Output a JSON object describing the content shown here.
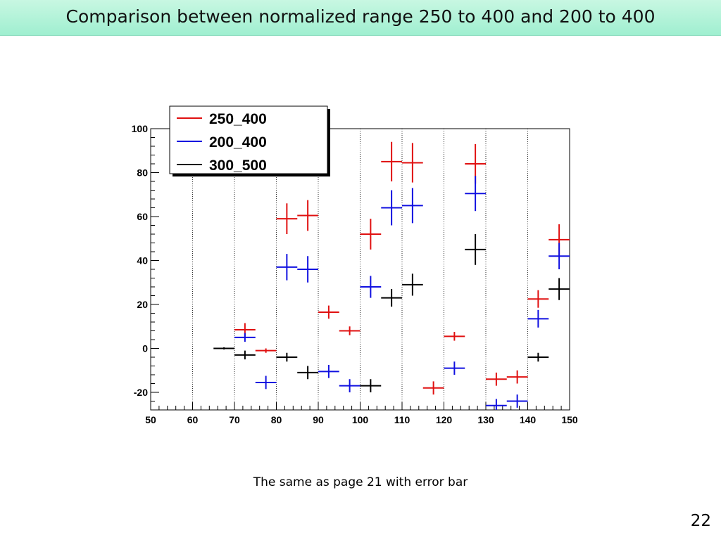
{
  "slide": {
    "title": "Comparison between normalized range 250 to 400 and 200 to 400",
    "caption": "The same as page 21 with error bar",
    "page_number": "22"
  },
  "chart_data": {
    "type": "scatter",
    "title": "",
    "xlabel": "",
    "ylabel": "",
    "xlim": [
      50,
      150
    ],
    "ylim": [
      -28,
      100
    ],
    "x_ticks": [
      50,
      60,
      70,
      80,
      90,
      100,
      110,
      120,
      130,
      140,
      150
    ],
    "y_ticks": [
      -20,
      0,
      20,
      40,
      60,
      80,
      100
    ],
    "grid": "vertical dotted lines every 10",
    "legend_position": "top-left",
    "series": [
      {
        "name": "250_400",
        "color": "#e01010",
        "points": [
          {
            "x": 72.5,
            "y": 8.5,
            "xerr": 2.5,
            "yerr": 3
          },
          {
            "x": 77.5,
            "y": -1,
            "xerr": 2.5,
            "yerr": 1
          },
          {
            "x": 82.5,
            "y": 59,
            "xerr": 2.5,
            "yerr": 7
          },
          {
            "x": 87.5,
            "y": 60.5,
            "xerr": 2.5,
            "yerr": 7
          },
          {
            "x": 92.5,
            "y": 16.5,
            "xerr": 2.5,
            "yerr": 3
          },
          {
            "x": 97.5,
            "y": 8,
            "xerr": 2.5,
            "yerr": 2
          },
          {
            "x": 102.5,
            "y": 52,
            "xerr": 2.5,
            "yerr": 7
          },
          {
            "x": 107.5,
            "y": 85,
            "xerr": 2.5,
            "yerr": 9
          },
          {
            "x": 112.5,
            "y": 84.5,
            "xerr": 2.5,
            "yerr": 9
          },
          {
            "x": 117.5,
            "y": -18,
            "xerr": 2.5,
            "yerr": 3
          },
          {
            "x": 122.5,
            "y": 5.5,
            "xerr": 2.5,
            "yerr": 2
          },
          {
            "x": 127.5,
            "y": 84,
            "xerr": 2.5,
            "yerr": 9
          },
          {
            "x": 132.5,
            "y": -14,
            "xerr": 2.5,
            "yerr": 3
          },
          {
            "x": 137.5,
            "y": -13,
            "xerr": 2.5,
            "yerr": 3
          },
          {
            "x": 142.5,
            "y": 22.5,
            "xerr": 2.5,
            "yerr": 4
          },
          {
            "x": 147.5,
            "y": 49.5,
            "xerr": 2.5,
            "yerr": 7
          }
        ]
      },
      {
        "name": "200_400",
        "color": "#1010e0",
        "points": [
          {
            "x": 72.5,
            "y": 5,
            "xerr": 2.5,
            "yerr": 2
          },
          {
            "x": 77.5,
            "y": -15.5,
            "xerr": 2.5,
            "yerr": 3
          },
          {
            "x": 82.5,
            "y": 37,
            "xerr": 2.5,
            "yerr": 6
          },
          {
            "x": 87.5,
            "y": 36,
            "xerr": 2.5,
            "yerr": 6
          },
          {
            "x": 92.5,
            "y": -10.5,
            "xerr": 2.5,
            "yerr": 3
          },
          {
            "x": 97.5,
            "y": -17,
            "xerr": 2.5,
            "yerr": 3
          },
          {
            "x": 102.5,
            "y": 28,
            "xerr": 2.5,
            "yerr": 5
          },
          {
            "x": 107.5,
            "y": 64,
            "xerr": 2.5,
            "yerr": 8
          },
          {
            "x": 112.5,
            "y": 65,
            "xerr": 2.5,
            "yerr": 8
          },
          {
            "x": 122.5,
            "y": -9,
            "xerr": 2.5,
            "yerr": 3
          },
          {
            "x": 127.5,
            "y": 70.5,
            "xerr": 2.5,
            "yerr": 8
          },
          {
            "x": 132.5,
            "y": -26,
            "xerr": 2.5,
            "yerr": 3
          },
          {
            "x": 137.5,
            "y": -24,
            "xerr": 2.5,
            "yerr": 3
          },
          {
            "x": 142.5,
            "y": 13.5,
            "xerr": 2.5,
            "yerr": 4
          },
          {
            "x": 147.5,
            "y": 42,
            "xerr": 2.5,
            "yerr": 6
          }
        ]
      },
      {
        "name": "300_500",
        "color": "#000000",
        "points": [
          {
            "x": 67.5,
            "y": 0,
            "xerr": 2.5,
            "yerr": 0.5
          },
          {
            "x": 72.5,
            "y": -3,
            "xerr": 2.5,
            "yerr": 2
          },
          {
            "x": 82.5,
            "y": -4,
            "xerr": 2.5,
            "yerr": 2
          },
          {
            "x": 87.5,
            "y": -11,
            "xerr": 2.5,
            "yerr": 3
          },
          {
            "x": 102.5,
            "y": -17,
            "xerr": 2.5,
            "yerr": 3
          },
          {
            "x": 107.5,
            "y": 23,
            "xerr": 2.5,
            "yerr": 4
          },
          {
            "x": 112.5,
            "y": 29,
            "xerr": 2.5,
            "yerr": 5
          },
          {
            "x": 127.5,
            "y": 45,
            "xerr": 2.5,
            "yerr": 7
          },
          {
            "x": 142.5,
            "y": -4,
            "xerr": 2.5,
            "yerr": 2
          },
          {
            "x": 147.5,
            "y": 27,
            "xerr": 2.5,
            "yerr": 5
          }
        ]
      }
    ]
  }
}
